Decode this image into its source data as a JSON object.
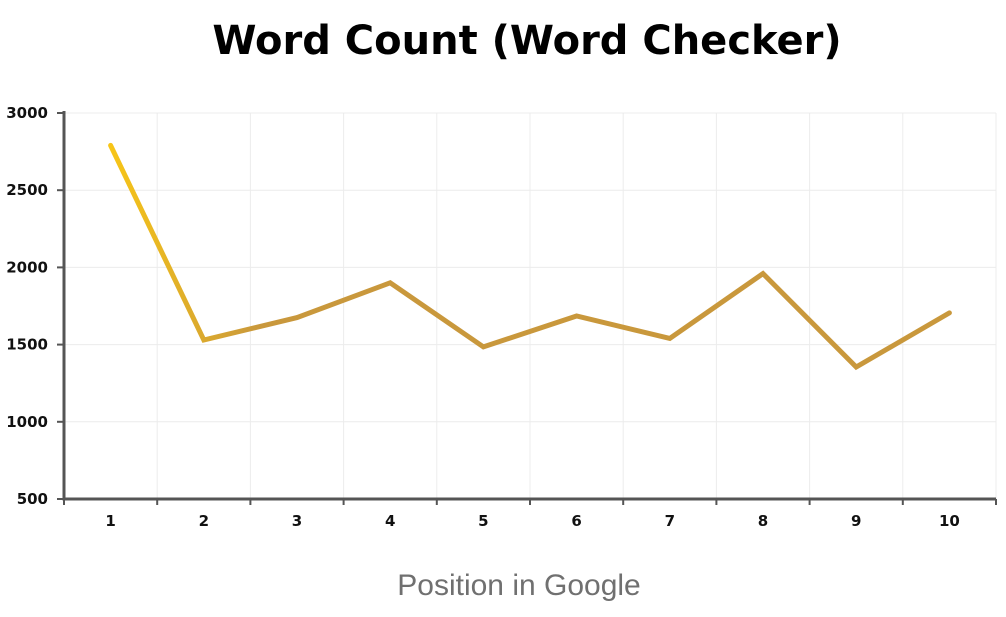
{
  "chart_data": {
    "type": "line",
    "title": "Word Count (Word Checker)",
    "xlabel": "Position in Google",
    "ylabel": "",
    "categories": [
      "1",
      "2",
      "3",
      "4",
      "5",
      "6",
      "7",
      "8",
      "9",
      "10"
    ],
    "ylim": [
      500,
      3000
    ],
    "yticks": [
      500,
      1000,
      1500,
      2000,
      2500,
      3000
    ],
    "grid": true,
    "legend": "none",
    "series": [
      {
        "values": [
          2790,
          1530,
          1675,
          1900,
          1485,
          1685,
          1540,
          1960,
          1355,
          1705
        ],
        "color_start": "#f8c617",
        "color_end": "#c9983c"
      }
    ]
  }
}
